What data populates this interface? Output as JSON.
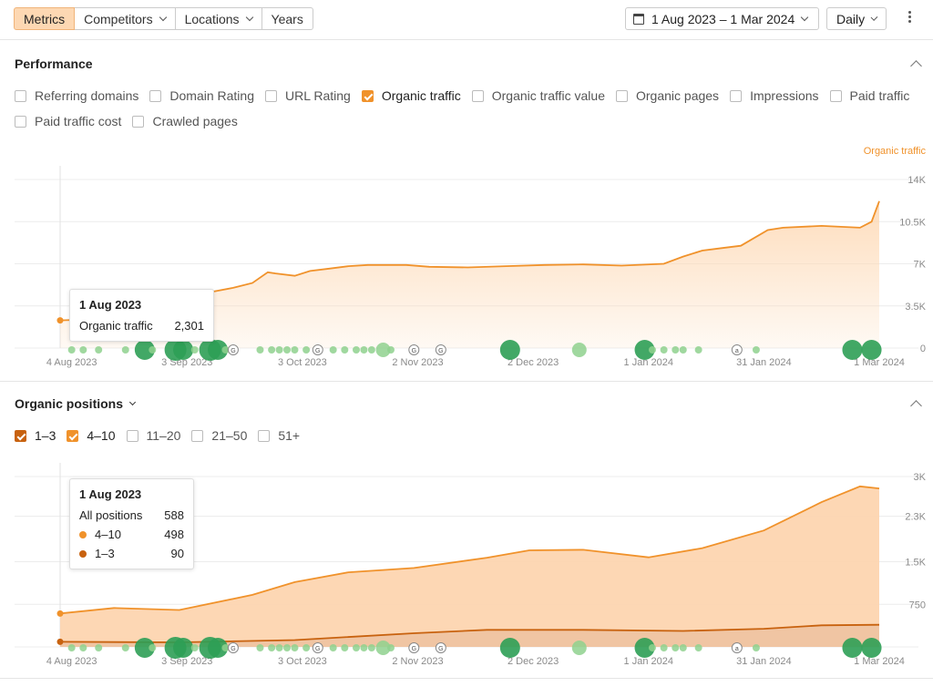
{
  "toolbar": {
    "tabs": [
      {
        "label": "Metrics",
        "active": true,
        "dropdown": false
      },
      {
        "label": "Competitors",
        "active": false,
        "dropdown": true
      },
      {
        "label": "Locations",
        "active": false,
        "dropdown": true
      },
      {
        "label": "Years",
        "active": false,
        "dropdown": false
      }
    ],
    "date_range": "1 Aug 2023 – 1 Mar 2024",
    "granularity": "Daily"
  },
  "performance": {
    "title": "Performance",
    "metrics": [
      {
        "label": "Referring domains",
        "checked": false
      },
      {
        "label": "Domain Rating",
        "checked": false
      },
      {
        "label": "URL Rating",
        "checked": false
      },
      {
        "label": "Organic traffic",
        "checked": true
      },
      {
        "label": "Organic traffic value",
        "checked": false
      },
      {
        "label": "Organic pages",
        "checked": false
      },
      {
        "label": "Impressions",
        "checked": false
      },
      {
        "label": "Paid traffic",
        "checked": false
      },
      {
        "label": "Paid traffic cost",
        "checked": false
      },
      {
        "label": "Crawled pages",
        "checked": false
      }
    ],
    "tooltip": {
      "date": "1 Aug 2023",
      "metric": "Organic traffic",
      "value": "2,301"
    }
  },
  "positions": {
    "title": "Organic positions",
    "filters": [
      {
        "label": "1–3",
        "checked": true,
        "color": "#c8620f"
      },
      {
        "label": "4–10",
        "checked": true,
        "color": "#f0922b"
      },
      {
        "label": "11–20",
        "checked": false
      },
      {
        "label": "21–50",
        "checked": false
      },
      {
        "label": "51+",
        "checked": false
      }
    ],
    "tooltip": {
      "date": "1 Aug 2023",
      "all_label": "All positions",
      "all_value": "588",
      "r1_label": "4–10",
      "r1_value": "498",
      "r2_label": "1–3",
      "r2_value": "90"
    }
  },
  "colors": {
    "accent": "#f0922b",
    "accent_dark": "#c8620f",
    "fill": "#fdd9b5",
    "update_dot": "#2e9e55",
    "update_dot_light": "#8fd18e"
  },
  "chart_data": [
    {
      "type": "area",
      "y_axis_title": "Organic traffic",
      "x_tick_labels": [
        "4 Aug 2023",
        "3 Sep 2023",
        "3 Oct 2023",
        "2 Nov 2023",
        "2 Dec 2023",
        "1 Jan 2024",
        "31 Jan 2024",
        "1 Mar 2024"
      ],
      "y_ticks": [
        0,
        3500,
        7000,
        10500,
        14000
      ],
      "y_tick_labels": [
        "0",
        "3.5K",
        "7K",
        "10.5K",
        "14K"
      ],
      "ylim": [
        0,
        14000
      ],
      "series": [
        {
          "x": [
            "2023-08-01",
            "2023-08-10",
            "2023-08-20",
            "2023-08-25",
            "2023-09-01",
            "2023-09-06",
            "2023-09-10",
            "2023-09-15",
            "2023-09-20",
            "2023-09-24",
            "2023-09-26",
            "2023-10-01",
            "2023-10-05",
            "2023-10-10",
            "2023-10-15",
            "2023-10-20",
            "2023-10-30",
            "2023-11-05",
            "2023-11-15",
            "2023-11-25",
            "2023-12-05",
            "2023-12-15",
            "2023-12-25",
            "2024-01-05",
            "2024-01-10",
            "2024-01-15",
            "2024-01-20",
            "2024-01-25",
            "2024-02-01",
            "2024-02-05",
            "2024-02-15",
            "2024-02-25",
            "2024-02-28",
            "2024-03-01"
          ],
          "values": [
            2300,
            2400,
            2500,
            2700,
            3400,
            4100,
            4700,
            5000,
            5400,
            6300,
            6200,
            6000,
            6400,
            6600,
            6800,
            6900,
            6900,
            6750,
            6700,
            6800,
            6900,
            6950,
            6850,
            7000,
            7600,
            8100,
            8300,
            8500,
            9800,
            10000,
            10150,
            10000,
            10500,
            12200
          ]
        }
      ]
    },
    {
      "type": "area",
      "x_tick_labels": [
        "4 Aug 2023",
        "3 Sep 2023",
        "3 Oct 2023",
        "2 Nov 2023",
        "2 Dec 2023",
        "1 Jan 2024",
        "31 Jan 2024",
        "1 Mar 2024"
      ],
      "y_ticks": [
        0,
        750,
        1500,
        2300,
        3000
      ],
      "y_tick_labels": [
        "",
        "750",
        "1.5K",
        "2.3K",
        "3K"
      ],
      "ylim": [
        0,
        3000
      ],
      "stacked": true,
      "series": [
        {
          "name": "1–3",
          "x": [
            "2023-08-01",
            "2023-09-01",
            "2023-10-01",
            "2023-11-01",
            "2023-11-20",
            "2023-12-15",
            "2024-01-10",
            "2024-01-31",
            "2024-02-15",
            "2024-03-01"
          ],
          "values": [
            90,
            80,
            120,
            240,
            300,
            300,
            280,
            320,
            380,
            390
          ]
        },
        {
          "name": "4–10",
          "x": [
            "2023-08-01",
            "2023-08-15",
            "2023-09-01",
            "2023-09-20",
            "2023-10-01",
            "2023-10-15",
            "2023-11-01",
            "2023-11-20",
            "2023-12-01",
            "2023-12-15",
            "2024-01-01",
            "2024-01-15",
            "2024-01-31",
            "2024-02-15",
            "2024-02-25",
            "2024-03-01"
          ],
          "values": [
            498,
            600,
            570,
            810,
            1020,
            1140,
            1150,
            1270,
            1400,
            1410,
            1290,
            1450,
            1730,
            2170,
            2440,
            2400
          ]
        }
      ]
    }
  ]
}
